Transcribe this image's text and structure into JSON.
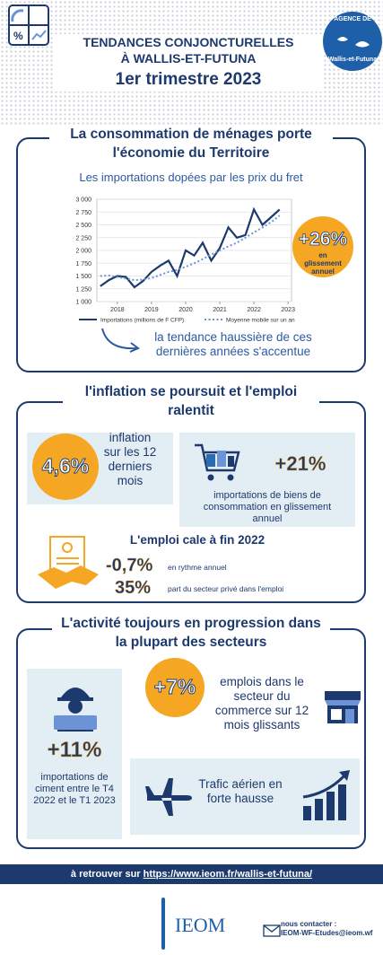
{
  "header": {
    "title_line1": "TENDANCES CONJONCTURELLES",
    "title_line2": "À WALLIS-ET-FUTUNA",
    "period": "1er trimestre 2023",
    "logo_top": "AGENCE DE",
    "logo_bottom": "Wallis-et-Futuna"
  },
  "section1": {
    "title": "La consommation de ménages porte l'économie du Territoire",
    "badge_value": "+26%",
    "badge_text": "en glissement annuel",
    "note": "la tendance haussière de ces dernières années s'accentue"
  },
  "chart_data": {
    "type": "line",
    "title": "Les importations dopées par les prix du fret",
    "x": [
      2017.5,
      2017.75,
      2018,
      2018.25,
      2018.5,
      2018.75,
      2019,
      2019.25,
      2019.5,
      2019.75,
      2020,
      2020.25,
      2020.5,
      2020.75,
      2021,
      2021.25,
      2021.5,
      2021.75,
      2022,
      2022.25,
      2022.5,
      2022.75
    ],
    "series": [
      {
        "name": "Importations (millions de F CFP)",
        "color": "#1d3a6e",
        "linestyle": "solid",
        "values": [
          1300,
          1420,
          1500,
          1480,
          1280,
          1400,
          1580,
          1700,
          1800,
          1500,
          2000,
          1900,
          2150,
          1800,
          2050,
          2450,
          2250,
          2300,
          2800,
          2500,
          2650,
          2800
        ]
      },
      {
        "name": "Moyenne mobile sur un an",
        "color": "#6b93d6",
        "linestyle": "dotted",
        "values": [
          1500,
          1510,
          1480,
          1450,
          1420,
          1430,
          1460,
          1520,
          1580,
          1620,
          1680,
          1750,
          1830,
          1920,
          2000,
          2080,
          2150,
          2250,
          2350,
          2450,
          2550,
          2680
        ]
      }
    ],
    "xlim": [
      2017.4,
      2023.1
    ],
    "xticks": [
      2018,
      2019,
      2020,
      2021,
      2022,
      2023
    ],
    "ylim": [
      1000,
      3000
    ],
    "yticks": [
      {
        "value": 1000,
        "label": "1 000"
      },
      {
        "value": 1250,
        "label": "1 250"
      },
      {
        "value": 1500,
        "label": "1 500"
      },
      {
        "value": 1750,
        "label": "1 750"
      },
      {
        "value": 2000,
        "label": "2 000"
      },
      {
        "value": 2250,
        "label": "2 250"
      },
      {
        "value": 2500,
        "label": "2 500"
      },
      {
        "value": 2750,
        "label": "2 750"
      },
      {
        "value": 3000,
        "label": "3 000"
      }
    ],
    "grid": true,
    "legend": "bottom"
  },
  "section2": {
    "title": "l'inflation se poursuit et l'emploi ralentit",
    "inflation_value": "4,6%",
    "inflation_text": "inflation sur les 12 derniers mois",
    "imports_value": "+21%",
    "imports_text": "importations de biens de consommation en glissement annuel",
    "employment_title": "L'emploi cale à fin 2022",
    "employment_value": "-0,7%",
    "employment_text": "en rythme annuel",
    "private_value": "35%",
    "private_text": "part du secteur privé dans l'emploi"
  },
  "section3": {
    "title": "L'activité toujours en progression dans la plupart des secteurs",
    "cement_value": "+11%",
    "cement_text": "importations de ciment entre le T4 2022 et le T1 2023",
    "commerce_value": "+7%",
    "commerce_text": "emplois dans le secteur du commerce sur 12 mois glissants",
    "air_text": "Trafic aérien en forte hausse"
  },
  "footer": {
    "lead": "à retrouver sur",
    "url": "https://www.ieom.fr/wallis-et-futuna/",
    "logo": "IEOM",
    "contact_label": "nous contacter :",
    "contact_email": "IEOM-WF-Etudes@ieom.wf"
  }
}
